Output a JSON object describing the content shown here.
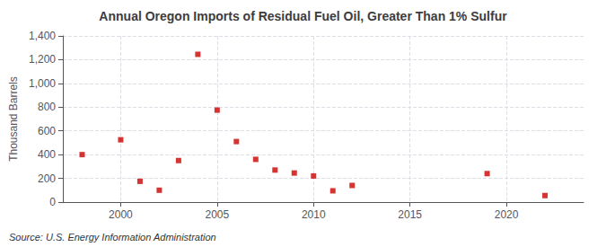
{
  "chart_data": {
    "type": "scatter",
    "title": "Annual Oregon Imports of Residual Fuel Oil, Greater Than 1% Sulfur",
    "ylabel": "Thousand Barrels",
    "annotation": "Source: U.S. Energy Information Administration",
    "x": [
      1998,
      2000,
      2001,
      2002,
      2003,
      2004,
      2005,
      2006,
      2007,
      2008,
      2009,
      2010,
      2011,
      2012,
      2019,
      2022
    ],
    "values": [
      400,
      525,
      175,
      100,
      350,
      1245,
      775,
      510,
      360,
      270,
      245,
      220,
      95,
      140,
      240,
      55
    ],
    "color": "#cc0000",
    "marker": "square",
    "xlim": [
      1997,
      2024
    ],
    "xticks": [
      2000,
      2005,
      2010,
      2015,
      2020
    ],
    "ylim": [
      0,
      1400
    ],
    "yticks": [
      0,
      200,
      400,
      600,
      800,
      {
        "value": 1000,
        "label": "1,000"
      },
      {
        "value": 1200,
        "label": "1,200"
      },
      {
        "value": 1400,
        "label": "1,400"
      }
    ],
    "grid": true
  }
}
